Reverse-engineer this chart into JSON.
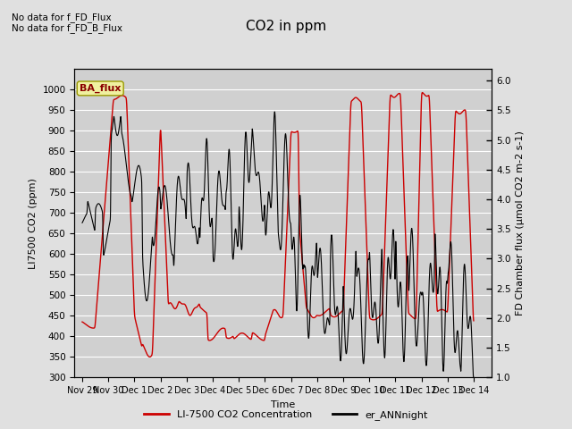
{
  "title": "CO2 in ppm",
  "xlabel": "Time",
  "ylabel_left": "LI7500 CO2 (ppm)",
  "ylabel_right": "FD Chamber flux (μmol CO2 m-2 s-1)",
  "ylim_left": [
    300,
    1050
  ],
  "ylim_right": [
    1.0,
    6.2
  ],
  "yticks_left": [
    300,
    350,
    400,
    450,
    500,
    550,
    600,
    650,
    700,
    750,
    800,
    850,
    900,
    950,
    1000
  ],
  "yticks_right": [
    1.0,
    1.5,
    2.0,
    2.5,
    3.0,
    3.5,
    4.0,
    4.5,
    5.0,
    5.5,
    6.0
  ],
  "text_lines": [
    "No data for f_FD_Flux",
    "No data for f_FD_B_Flux"
  ],
  "legend_label_red": "LI-7500 CO2 Concentration",
  "legend_label_black": "er_ANNnight",
  "box_label": "BA_flux",
  "bg_color": "#e0e0e0",
  "plot_bg_color": "#d0d0d0",
  "red_color": "#cc0000",
  "black_color": "#000000",
  "xtick_labels": [
    "Nov 29",
    "Nov 30",
    "Dec 1",
    "Dec 2",
    "Dec 3",
    "Dec 4",
    "Dec 5",
    "Dec 6",
    "Dec 7",
    "Dec 8",
    "Dec 9",
    "Dec 10",
    "Dec 11",
    "Dec 12",
    "Dec 13",
    "Dec 14"
  ],
  "xtick_positions": [
    -2,
    -1,
    0,
    1,
    2,
    3,
    4,
    5,
    6,
    7,
    8,
    9,
    10,
    11,
    12,
    13
  ]
}
